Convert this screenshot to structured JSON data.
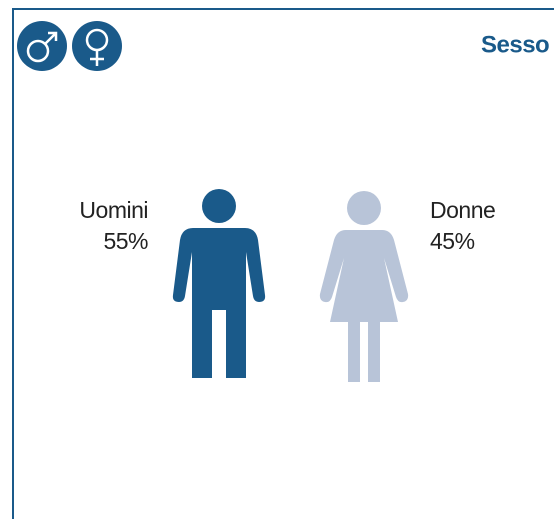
{
  "header": {
    "title": "Sesso"
  },
  "groups": [
    {
      "label": "Uomini",
      "share": "55%"
    },
    {
      "label": "Donne",
      "share": "45%"
    }
  ]
}
